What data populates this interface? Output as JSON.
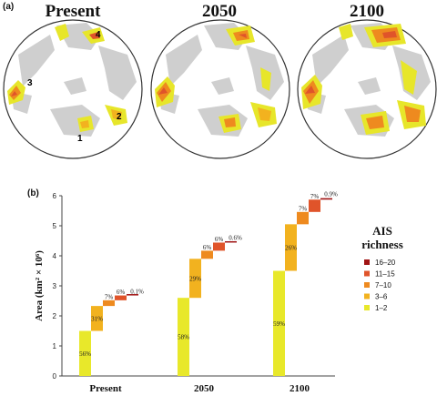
{
  "panel_a": {
    "label": "(a)",
    "maps": [
      {
        "title": "Present",
        "region_labels": [
          "1",
          "2",
          "3",
          "4"
        ]
      },
      {
        "title": "2050",
        "region_labels": []
      },
      {
        "title": "2100",
        "region_labels": []
      }
    ]
  },
  "panel_b": {
    "label": "(b)"
  },
  "chart_data": {
    "type": "bar",
    "ylabel": "Area (km² × 10⁶)",
    "ylim": [
      0,
      6
    ],
    "yticks": [
      "0",
      "1",
      "2",
      "3",
      "4",
      "5",
      "6"
    ],
    "categories": [
      "Present",
      "2050",
      "2100"
    ],
    "legend_title": [
      "AIS",
      "richness"
    ],
    "stacked": true,
    "series": [
      {
        "name": "1–2",
        "color": "#e8e82a",
        "values": [
          1.5,
          2.6,
          3.5
        ],
        "labels": [
          "56%",
          "58%",
          "59%"
        ]
      },
      {
        "name": "3–6",
        "color": "#f2b21f",
        "values": [
          0.83,
          1.3,
          1.55
        ],
        "labels": [
          "31%",
          "29%",
          "26%"
        ]
      },
      {
        "name": "7–10",
        "color": "#ee8a1f",
        "values": [
          0.19,
          0.27,
          0.41
        ],
        "labels": [
          "7%",
          "6%",
          "7%"
        ]
      },
      {
        "name": "11–15",
        "color": "#e0542a",
        "values": [
          0.16,
          0.27,
          0.41
        ],
        "labels": [
          "6%",
          "6%",
          "7%"
        ]
      },
      {
        "name": "16–20",
        "color": "#a01414",
        "values": [
          0.003,
          0.03,
          0.05
        ],
        "labels": [
          "0.1%",
          "0.6%",
          "0.9%"
        ]
      }
    ]
  }
}
